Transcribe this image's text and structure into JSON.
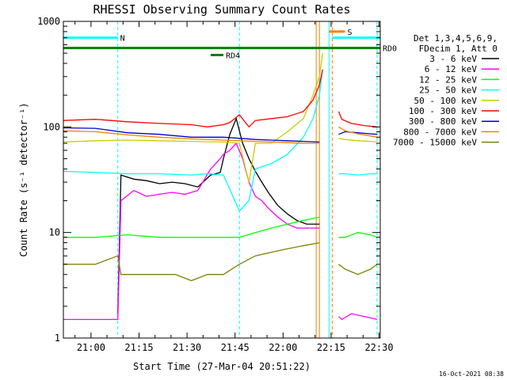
{
  "chart_data": {
    "type": "line",
    "title": "RHESSI Observing Summary Count Rates",
    "xlabel": "Start Time (27-Mar-04 20:51:22)",
    "ylabel": "Count Rate (s⁻¹ detector⁻¹)",
    "x_ticks": [
      "21:00",
      "21:15",
      "21:30",
      "21:45",
      "22:00",
      "22:15",
      "22:30"
    ],
    "y_ticks": [
      "1",
      "10",
      "100",
      "1000"
    ],
    "y_scale": "log",
    "x_range_minutes_after_start": [
      0,
      99
    ],
    "ylim": [
      1,
      1000
    ],
    "legend_header": [
      "Det 1,3,4,5,6,9,",
      "FDecim 1, Att 0"
    ],
    "series": [
      {
        "name": "3 - 6 keV",
        "color": "#000000",
        "x": [
          17,
          18,
          22,
          26,
          30,
          34,
          38,
          42,
          46,
          49,
          50,
          52,
          54,
          56,
          58,
          60,
          62,
          64,
          67,
          70,
          73,
          76,
          80
        ],
        "y": [
          1.7,
          35,
          32,
          31,
          29,
          30,
          29,
          27,
          35,
          37,
          50,
          85,
          120,
          70,
          50,
          38,
          30,
          24,
          18,
          15,
          13,
          12,
          12
        ]
      },
      {
        "name": "6 - 12 keV",
        "color": "#ff00ff",
        "x": [
          0,
          17,
          18,
          22,
          26,
          30,
          34,
          38,
          42,
          46,
          49,
          50,
          52,
          54,
          56,
          58,
          60,
          62,
          64,
          67,
          70,
          73,
          76,
          80
        ],
        "y": [
          1.5,
          1.5,
          20,
          25,
          22,
          23,
          24,
          23,
          25,
          40,
          50,
          55,
          60,
          70,
          50,
          30,
          22,
          20,
          17,
          14,
          12,
          11,
          11,
          11
        ]
      },
      {
        "name": "12 - 25 keV",
        "color": "#00ff00",
        "x": [
          0,
          10,
          20,
          30,
          40,
          50,
          55,
          60,
          65,
          70,
          75,
          80
        ],
        "y": [
          9,
          9,
          9.5,
          9,
          9,
          9,
          9,
          10,
          11,
          12,
          13,
          14
        ]
      },
      {
        "name": "25 - 50 keV",
        "color": "#00ffff",
        "x": [
          0,
          10,
          20,
          30,
          40,
          45,
          50,
          55,
          58,
          60,
          65,
          70,
          75,
          78,
          80,
          81
        ],
        "y": [
          38,
          37,
          36,
          36,
          35,
          36,
          35,
          16,
          20,
          40,
          45,
          55,
          80,
          120,
          200,
          350
        ]
      },
      {
        "name": "50 - 100 keV",
        "color": "#cccc00",
        "x": [
          0,
          10,
          20,
          30,
          40,
          50,
          55,
          58,
          60,
          65,
          70,
          75,
          78,
          80,
          81
        ],
        "y": [
          72,
          74,
          75,
          74,
          73,
          72,
          70,
          30,
          70,
          70,
          90,
          120,
          200,
          300,
          500
        ]
      },
      {
        "name": "100 - 300 keV",
        "color": "#ff0000",
        "x": [
          0,
          10,
          20,
          30,
          40,
          45,
          50,
          52,
          55,
          58,
          60,
          65,
          70,
          75,
          78,
          80,
          81
        ],
        "y": [
          115,
          118,
          112,
          108,
          105,
          100,
          105,
          110,
          130,
          100,
          115,
          120,
          125,
          140,
          180,
          250,
          350
        ]
      },
      {
        "name": "300 - 800 keV",
        "color": "#0000cc",
        "x": [
          0,
          10,
          20,
          30,
          40,
          50,
          55,
          60,
          65,
          70,
          75,
          80
        ],
        "y": [
          98,
          97,
          88,
          85,
          80,
          80,
          78,
          76,
          75,
          74,
          73,
          72
        ]
      },
      {
        "name": "800 - 7000 keV",
        "color": "#ff8000",
        "x": [
          0,
          10,
          20,
          30,
          40,
          50,
          55,
          60,
          65,
          70,
          75,
          80
        ],
        "y": [
          92,
          90,
          84,
          80,
          77,
          75,
          74,
          73,
          72,
          71,
          70,
          70
        ]
      },
      {
        "name": "7000 - 15000 keV",
        "color": "#808000",
        "x": [
          0,
          10,
          17,
          18,
          25,
          30,
          35,
          40,
          45,
          50,
          55,
          60,
          65,
          70,
          75,
          80
        ],
        "y": [
          5,
          5,
          6,
          4,
          4,
          4,
          4,
          3.5,
          4,
          4,
          5,
          6,
          6.5,
          7,
          7.5,
          8
        ]
      }
    ],
    "post_gap_series": [
      {
        "name": "100 - 300 keV",
        "x": [
          86,
          87,
          90,
          94,
          98
        ],
        "y": [
          140,
          118,
          108,
          103,
          100
        ]
      },
      {
        "name": "300 - 800 keV",
        "x": [
          86,
          88,
          92,
          96,
          98
        ],
        "y": [
          85,
          90,
          88,
          86,
          85
        ]
      },
      {
        "name": "800 - 7000 keV",
        "x": [
          86,
          88,
          92,
          96,
          98
        ],
        "y": [
          100,
          92,
          86,
          82,
          80
        ]
      },
      {
        "name": "50 - 100 keV",
        "x": [
          86,
          88,
          92,
          96,
          98
        ],
        "y": [
          78,
          76,
          74,
          73,
          72
        ]
      },
      {
        "name": "25 - 50 keV",
        "x": [
          86,
          88,
          92,
          96,
          98
        ],
        "y": [
          36,
          36,
          35,
          36,
          36
        ]
      },
      {
        "name": "12 - 25 keV",
        "x": [
          86,
          88,
          92,
          96,
          98
        ],
        "y": [
          9,
          9,
          10,
          9.5,
          9
        ]
      },
      {
        "name": "7000 - 15000 keV",
        "x": [
          86,
          88,
          92,
          96,
          98
        ],
        "y": [
          5,
          4.5,
          4,
          4.5,
          5
        ]
      },
      {
        "name": "6 - 12 keV",
        "x": [
          86,
          87,
          90,
          94,
          98
        ],
        "y": [
          1.6,
          1.5,
          1.7,
          1.6,
          1.5
        ]
      }
    ],
    "flag_bars": [
      {
        "label": "N",
        "color": "#00ffff",
        "x_start": 0,
        "x_end": 17,
        "level": 700
      },
      {
        "label": "",
        "color": "#00ffff",
        "x_start": 84,
        "x_end": 99,
        "level": 700
      },
      {
        "label": "S",
        "color": "#ff8000",
        "x_start": 83,
        "x_end": 88,
        "level": 800
      },
      {
        "label": "RD0",
        "color": "#008000",
        "x_start": 0,
        "x_end": 99,
        "level": 560
      },
      {
        "label": "RD4",
        "color": "#008000",
        "x_start": 46,
        "x_end": 50,
        "level": 480
      }
    ],
    "vertical_markers": [
      {
        "x": 17,
        "color": "#00ffff",
        "style": "dashed"
      },
      {
        "x": 55,
        "color": "#00ffff",
        "style": "dashed"
      },
      {
        "x": 79,
        "color": "#ff8000",
        "style": "solid"
      },
      {
        "x": 80,
        "color": "#ff8000",
        "style": "solid"
      },
      {
        "x": 83,
        "color": "#00ffff",
        "style": "solid"
      },
      {
        "x": 84,
        "color": "#ff8000",
        "style": "dashed"
      },
      {
        "x": 98,
        "color": "#00ffff",
        "style": "dashed"
      }
    ],
    "grid": false,
    "legend_position": "top-right"
  },
  "timestamp": "16-Oct-2021 08:38"
}
